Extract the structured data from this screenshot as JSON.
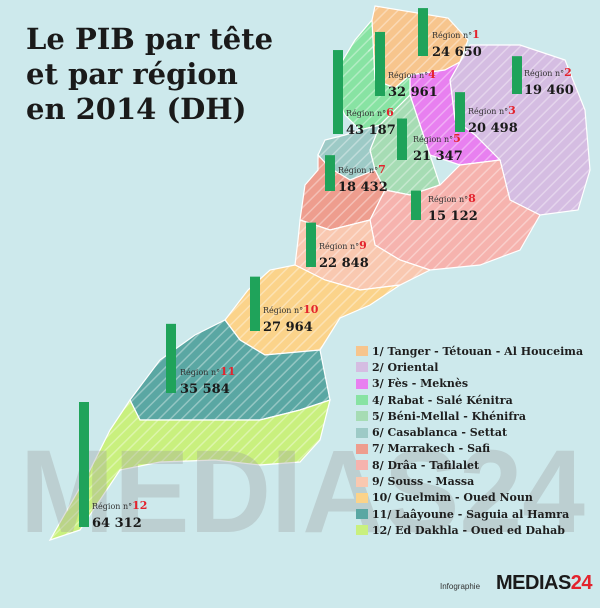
{
  "title_lines": [
    "Le PIB par tête",
    "et par région",
    "en 2014 (DH)"
  ],
  "watermark": "MEDIAS24",
  "credit": {
    "small": "Infographie",
    "brand": "MEDIAS",
    "brand_num": "24"
  },
  "colors": {
    "sea": "#cde9ec",
    "bar": "#1fa35a",
    "value_text": "#1a1a1a",
    "region_label": "#e3232d"
  },
  "chart_data": {
    "type": "bar",
    "unit": "DH",
    "title": "Le PIB par tête et par région en 2014 (DH)",
    "regions": [
      {
        "num": "1",
        "badge": "Région n°1",
        "name": "Tanger - Tétouan - Al Houceima",
        "value": 24650,
        "value_text": "24 650",
        "color": "#f7c58d"
      },
      {
        "num": "2",
        "badge": "Région n°2",
        "name": "Oriental",
        "value": 19460,
        "value_text": "19 460",
        "color": "#d5bde2"
      },
      {
        "num": "3",
        "badge": "Région n°3",
        "name": "Fès - Meknès",
        "value": 20498,
        "value_text": "20 498",
        "color": "#e880f0"
      },
      {
        "num": "4",
        "badge": "Région n°4",
        "name": "Rabat - Salé Kénitra",
        "value": 32961,
        "value_text": "32 961",
        "color": "#88e3a3"
      },
      {
        "num": "5",
        "badge": "Région n°5",
        "name": "Béni-Mellal - Khénifra",
        "value": 21347,
        "value_text": "21 347",
        "color": "#a6dcb4"
      },
      {
        "num": "6",
        "badge": "Région n°6",
        "name": "Casablanca - Settat",
        "value": 43187,
        "value_text": "43 187",
        "color": "#9dcac6"
      },
      {
        "num": "7",
        "badge": "Région n°7",
        "name": "Marrakech - Safi",
        "value": 18432,
        "value_text": "18 432",
        "color": "#ee9d8e"
      },
      {
        "num": "8",
        "badge": "Région n°8",
        "name": "Drâa - Tafilalet",
        "value": 15122,
        "value_text": "15 122",
        "color": "#f6b3ae"
      },
      {
        "num": "9",
        "badge": "Région n°9",
        "name": "Souss - Massa",
        "value": 22848,
        "value_text": "22 848",
        "color": "#f9c8b0"
      },
      {
        "num": "10",
        "badge": "Région n°10",
        "name": "Guelmim - Oued Noun",
        "value": 27964,
        "value_text": "27 964",
        "color": "#fbd38a"
      },
      {
        "num": "11",
        "badge": "Région n°11",
        "name": "Laâyoune - Saguia al Hamra",
        "value": 35584,
        "value_text": "35 584",
        "color": "#5aa7a3"
      },
      {
        "num": "12",
        "badge": "Région n°12",
        "name": "Ed Dakhla - Oued ed Dahab",
        "value": 64312,
        "value_text": "64 312",
        "color": "#c9f07e"
      }
    ]
  }
}
